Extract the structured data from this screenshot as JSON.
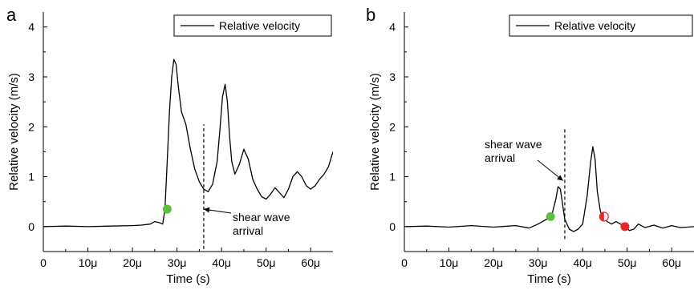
{
  "chart_data": [
    {
      "panel": "a",
      "type": "line",
      "xlabel": "Time (s)",
      "ylabel": "Relative velocity (m/s)",
      "xlim": [
        0,
        65
      ],
      "ylim": [
        -0.5,
        4.3
      ],
      "xticks": [
        0,
        10,
        20,
        30,
        40,
        50,
        60
      ],
      "xtick_labels": [
        "0",
        "10μ",
        "20μ",
        "30μ",
        "40μ",
        "50μ",
        "60μ"
      ],
      "yticks": [
        0,
        1,
        2,
        3,
        4
      ],
      "ytick_labels": [
        "0",
        "1",
        "2",
        "3",
        "4"
      ],
      "legend": "Relative velocity",
      "legend_position": "top-right",
      "series": [
        {
          "name": "Relative velocity",
          "x": [
            0,
            5,
            10,
            15,
            20,
            22,
            24,
            25,
            26,
            26.8,
            27.3,
            27.8,
            28.3,
            28.8,
            29.3,
            29.8,
            30.3,
            31,
            32,
            33,
            34,
            35,
            36,
            37,
            38,
            39,
            39.6,
            40.2,
            40.8,
            41.3,
            41.8,
            42.3,
            43,
            44,
            45,
            46,
            47,
            48,
            49,
            50,
            51,
            52,
            53,
            54,
            55,
            56,
            57,
            58,
            59,
            60,
            61,
            62,
            63,
            64,
            65
          ],
          "y": [
            0,
            0.01,
            0,
            0.01,
            0.02,
            0.03,
            0.05,
            0.1,
            0.08,
            0.05,
            0.35,
            1.3,
            2.3,
            3.0,
            3.35,
            3.25,
            2.8,
            2.3,
            2.05,
            1.55,
            1.15,
            0.9,
            0.75,
            0.7,
            0.85,
            1.3,
            1.9,
            2.6,
            2.85,
            2.5,
            1.8,
            1.3,
            1.05,
            1.25,
            1.55,
            1.35,
            0.95,
            0.75,
            0.6,
            0.55,
            0.65,
            0.78,
            0.68,
            0.58,
            0.75,
            1.0,
            1.1,
            1.0,
            0.82,
            0.75,
            0.82,
            0.95,
            1.05,
            1.2,
            1.5
          ]
        }
      ],
      "markers": [
        {
          "x": 27.8,
          "y": 0.35,
          "color": "#5cbf3a",
          "style": "filled"
        }
      ],
      "vline": {
        "x": 36,
        "y0": -0.45,
        "y1": 2.05
      },
      "annotation": {
        "lines": [
          "shear wave",
          "arrival"
        ],
        "arrow_to": [
          36,
          0.35
        ]
      }
    },
    {
      "panel": "b",
      "type": "line",
      "xlabel": "Time (s)",
      "ylabel": "Relative velocity (m/s)",
      "xlim": [
        0,
        65
      ],
      "ylim": [
        -0.5,
        4.3
      ],
      "xticks": [
        0,
        10,
        20,
        30,
        40,
        50,
        60
      ],
      "xtick_labels": [
        "0",
        "10μ",
        "20μ",
        "30μ",
        "40μ",
        "50μ",
        "60μ"
      ],
      "yticks": [
        0,
        1,
        2,
        3,
        4
      ],
      "ytick_labels": [
        "0",
        "1",
        "2",
        "3",
        "4"
      ],
      "legend": "Relative velocity",
      "legend_position": "top-right",
      "series": [
        {
          "name": "Relative velocity",
          "x": [
            0,
            5,
            10,
            15,
            20,
            25,
            28,
            30,
            31,
            32,
            33,
            34,
            34.5,
            35,
            35.5,
            36,
            37,
            38,
            39,
            40,
            41,
            41.8,
            42.3,
            42.8,
            43.3,
            44,
            44.8,
            45.5,
            46.5,
            47.5,
            48.5,
            49.5,
            50.5,
            51.5,
            52.5,
            54,
            56,
            58,
            60,
            62,
            65
          ],
          "y": [
            0,
            0.01,
            -0.01,
            0.02,
            -0.01,
            0.02,
            -0.03,
            0.05,
            0.1,
            0.15,
            0.2,
            0.55,
            0.8,
            0.75,
            0.45,
            0.15,
            -0.05,
            -0.1,
            -0.05,
            0.05,
            0.6,
            1.3,
            1.6,
            1.35,
            0.7,
            0.3,
            0.18,
            0.1,
            0.05,
            0.1,
            0.05,
            0.0,
            -0.08,
            -0.05,
            0.05,
            -0.02,
            0.03,
            -0.03,
            0.02,
            -0.02,
            0.0
          ]
        }
      ],
      "markers": [
        {
          "x": 32.8,
          "y": 0.2,
          "color": "#5cbf3a",
          "style": "filled"
        },
        {
          "x": 44.8,
          "y": 0.2,
          "color": "#e8262a",
          "style": "half"
        },
        {
          "x": 49.5,
          "y": 0.0,
          "color": "#e8262a",
          "style": "filled"
        }
      ],
      "vline": {
        "x": 36,
        "y0": -0.25,
        "y1": 2.0
      },
      "annotation": {
        "lines": [
          "shear wave",
          "arrival"
        ],
        "arrow_to": [
          35.6,
          0.92
        ]
      }
    }
  ]
}
